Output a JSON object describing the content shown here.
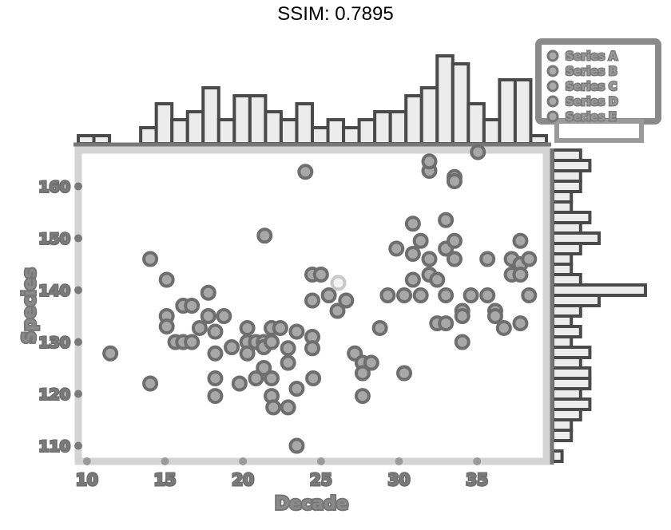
{
  "header": {
    "title": "SSIM: 0.7895"
  },
  "chart_data": {
    "type": "scatter",
    "title": "",
    "xlabel": "Decade",
    "ylabel": "Species",
    "xlim": [
      9.0,
      63.0
    ],
    "ylim": [
      105.0,
      165.0
    ],
    "x_ticks": [
      "10",
      "15",
      "20",
      "25",
      "30",
      "35"
    ],
    "y_ticks": [
      "160",
      "150",
      "140",
      "130",
      "120",
      "110"
    ],
    "x_tick_values": [
      10,
      19,
      28,
      37,
      46,
      55
    ],
    "y_tick_values": [
      158,
      148,
      138,
      128,
      118,
      108
    ],
    "grid": false,
    "legend": {
      "placement": "top-right",
      "entries": [
        "Series A",
        "Series B",
        "Series C",
        "Series D",
        "Series E"
      ]
    },
    "points": [
      [
        12.7,
        125.8
      ],
      [
        17.3,
        120.0
      ],
      [
        17.3,
        144.0
      ],
      [
        19.2,
        140.0
      ],
      [
        19.2,
        133.0
      ],
      [
        19.2,
        131.0
      ],
      [
        20.2,
        128.0
      ],
      [
        21.1,
        135.0
      ],
      [
        21.1,
        128.0
      ],
      [
        22.1,
        135.0
      ],
      [
        22.1,
        128.0
      ],
      [
        23.0,
        130.7
      ],
      [
        24.0,
        137.5
      ],
      [
        24.0,
        133.0
      ],
      [
        24.8,
        130.0
      ],
      [
        24.8,
        125.8
      ],
      [
        24.8,
        121.0
      ],
      [
        24.8,
        117.6
      ],
      [
        25.8,
        133.0
      ],
      [
        26.7,
        127.0
      ],
      [
        27.6,
        120.0
      ],
      [
        28.5,
        130.7
      ],
      [
        28.5,
        128.0
      ],
      [
        28.5,
        125.8
      ],
      [
        29.5,
        128.0
      ],
      [
        29.5,
        121.0
      ],
      [
        30.4,
        128.0
      ],
      [
        30.4,
        127.0
      ],
      [
        30.4,
        123.0
      ],
      [
        30.5,
        148.5
      ],
      [
        31.3,
        130.7
      ],
      [
        31.3,
        128.0
      ],
      [
        31.3,
        121.0
      ],
      [
        31.3,
        117.6
      ],
      [
        31.5,
        115.4
      ],
      [
        32.3,
        130.7
      ],
      [
        33.2,
        126.8
      ],
      [
        33.2,
        124.0
      ],
      [
        33.2,
        115.4
      ],
      [
        34.2,
        130.0
      ],
      [
        34.2,
        119.0
      ],
      [
        34.2,
        108.0
      ],
      [
        35.2,
        160.8
      ],
      [
        36.0,
        141.0
      ],
      [
        36.0,
        136.0
      ],
      [
        36.0,
        129.0
      ],
      [
        36.0,
        126.8
      ],
      [
        36.1,
        121.0
      ],
      [
        37.0,
        141.0
      ],
      [
        37.9,
        137.0
      ],
      [
        38.9,
        134.0
      ],
      [
        39.9,
        136.0
      ],
      [
        40.9,
        125.8
      ],
      [
        41.8,
        124.0
      ],
      [
        41.8,
        122.0
      ],
      [
        41.8,
        117.6
      ],
      [
        42.8,
        124.0
      ],
      [
        43.8,
        130.7
      ],
      [
        44.7,
        137.0
      ],
      [
        45.7,
        146.0
      ],
      [
        46.6,
        122.0
      ],
      [
        46.6,
        137.0
      ],
      [
        47.6,
        140.0
      ],
      [
        47.6,
        145.0
      ],
      [
        47.6,
        150.8
      ],
      [
        48.5,
        147.5
      ],
      [
        48.5,
        137.0
      ],
      [
        49.5,
        141.0
      ],
      [
        49.5,
        144.0
      ],
      [
        49.5,
        161.0
      ],
      [
        49.5,
        162.8
      ],
      [
        50.4,
        140.0
      ],
      [
        50.4,
        131.6
      ],
      [
        51.4,
        151.5
      ],
      [
        51.4,
        146.0
      ],
      [
        51.4,
        137.0
      ],
      [
        51.4,
        131.6
      ],
      [
        52.4,
        159.8
      ],
      [
        52.4,
        159.0
      ],
      [
        52.4,
        147.5
      ],
      [
        52.4,
        144.0
      ],
      [
        53.3,
        134.0
      ],
      [
        53.3,
        133.0
      ],
      [
        53.3,
        128.0
      ],
      [
        54.3,
        137.0
      ],
      [
        55.1,
        164.6
      ],
      [
        56.2,
        144.0
      ],
      [
        56.2,
        137.0
      ],
      [
        57.1,
        134.0
      ],
      [
        57.1,
        133.0
      ],
      [
        58.1,
        130.7
      ],
      [
        59.0,
        144.0
      ],
      [
        59.0,
        141.0
      ],
      [
        60.0,
        147.5
      ],
      [
        60.0,
        143.0
      ],
      [
        60.0,
        141.0
      ],
      [
        60.0,
        131.6
      ],
      [
        61.0,
        144.0
      ],
      [
        61.0,
        137.0
      ],
      [
        39.0,
        139.4
      ]
    ],
    "top_histogram": {
      "bins": [
        9.0,
        10.8,
        12.6,
        14.4,
        16.2,
        18.0,
        19.8,
        21.6,
        23.4,
        25.2,
        27.0,
        28.8,
        30.6,
        32.4,
        34.2,
        36.0,
        37.8,
        39.6,
        41.4,
        43.2,
        45.0,
        46.8,
        48.6,
        50.4,
        52.2,
        54.0,
        55.8,
        57.6,
        59.4,
        61.2,
        63.0
      ],
      "counts": [
        1,
        1,
        0,
        0,
        2,
        5,
        3,
        4,
        7,
        3,
        6,
        6,
        4,
        3,
        5,
        2,
        3,
        2,
        3,
        4,
        4,
        6,
        7,
        11,
        10,
        5,
        3,
        8,
        8,
        1
      ]
    },
    "right_histogram": {
      "bins": [
        105,
        107,
        109,
        111,
        113,
        115,
        117,
        119,
        121,
        123,
        125,
        127,
        129,
        131,
        133,
        135,
        137,
        139,
        141,
        143,
        145,
        147,
        149,
        151,
        153,
        155,
        157,
        159,
        161,
        163,
        165
      ],
      "counts": [
        1,
        0,
        2,
        2,
        3,
        4,
        3,
        4,
        4,
        3,
        4,
        2,
        3,
        2,
        3,
        5,
        10,
        3,
        2,
        2,
        3,
        5,
        3,
        4,
        2,
        2,
        3,
        3,
        4,
        3
      ]
    }
  }
}
